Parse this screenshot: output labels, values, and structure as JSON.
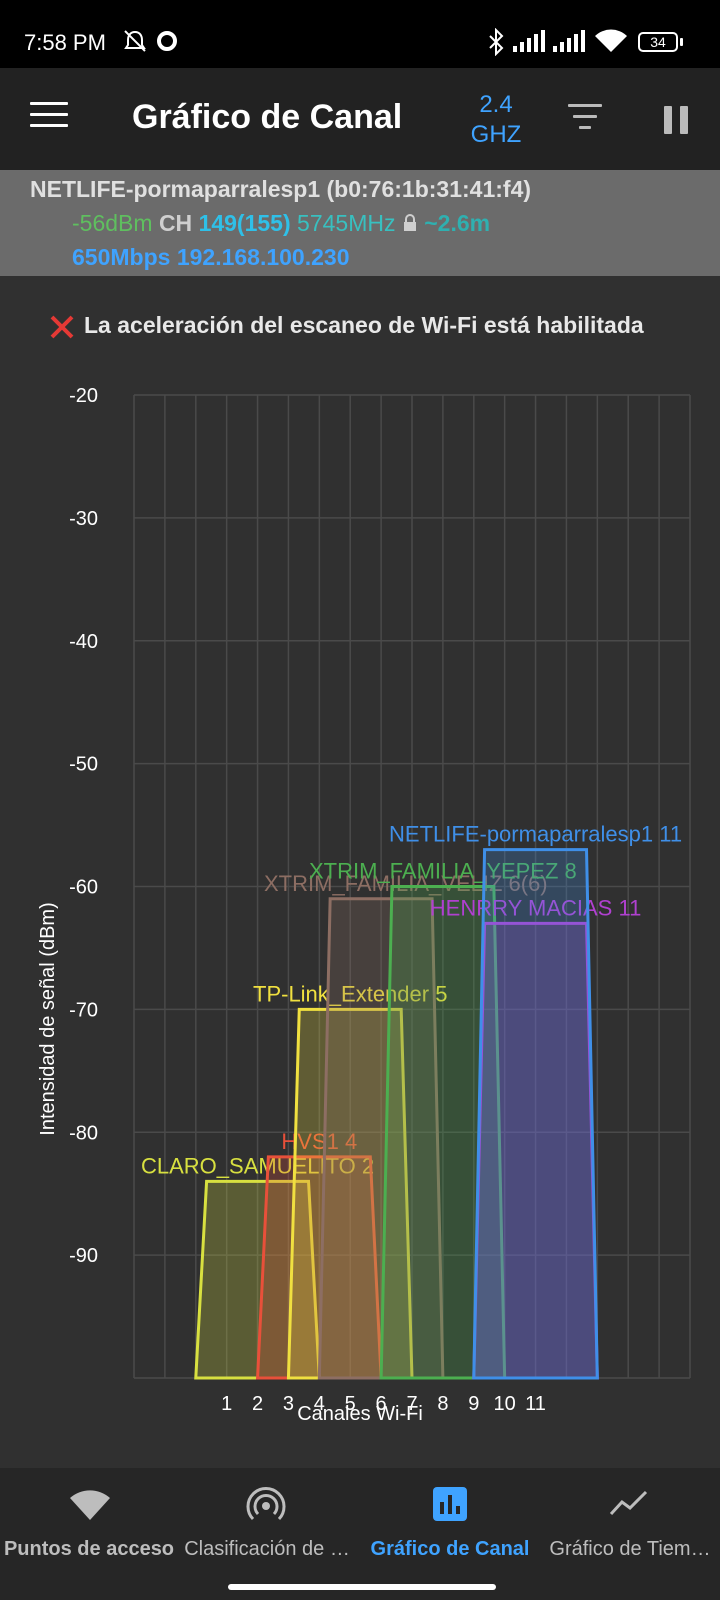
{
  "status_bar": {
    "time": "7:58 PM",
    "battery": "34"
  },
  "app_bar": {
    "title": "Gráfico de Canal",
    "band_line1": "2.4",
    "band_line2": "GHZ"
  },
  "connection": {
    "ssid_line": "NETLIFE-pormaparralesp1 (b0:76:1b:31:41:f4)",
    "signal": "-56dBm",
    "ch_label": "CH",
    "channel": "149(155)",
    "frequency": "5745MHz",
    "distance": "~2.6m",
    "speed_ip": "650Mbps 192.168.100.230"
  },
  "warning": {
    "text": "La aceleración del escaneo de Wi-Fi está habilitada",
    "color": "#e53935"
  },
  "chart_data": {
    "type": "area",
    "ylabel": "Intensidad de señal (dBm)",
    "xlabel": "Canales Wi-Fi",
    "ylim": [
      -100,
      -20
    ],
    "xlim": [
      -2,
      16
    ],
    "y_ticks": [
      -20,
      -30,
      -40,
      -50,
      -60,
      -70,
      -80,
      -90
    ],
    "x_ticks": [
      1,
      2,
      3,
      4,
      5,
      6,
      7,
      8,
      9,
      10,
      11
    ],
    "grid": true,
    "series": [
      {
        "name": "CLARO_SAMUELITO 2",
        "channel": 2,
        "signal": -84,
        "color": "#d8e040"
      },
      {
        "name": "HVS1 4",
        "channel": 4,
        "signal": -82,
        "color": "#e8503a"
      },
      {
        "name": "TP-Link_Extender 5",
        "channel": 5,
        "signal": -70,
        "color": "#f0e040"
      },
      {
        "name": "XTRIM_FAMILIA_VELIZ 6(6)",
        "channel": 6,
        "signal": -61,
        "color": "#8d6e63"
      },
      {
        "name": "XTRIM_FAMILIA_YEPEZ 8",
        "channel": 8,
        "signal": -60,
        "color": "#4caf50"
      },
      {
        "name": "HENRRY MACIAS 11",
        "channel": 11,
        "signal": -63,
        "color": "#b040d0"
      },
      {
        "name": "NETLIFE-pormaparralesp1 11",
        "channel": 11,
        "signal": -57,
        "color": "#3f8fe8"
      }
    ]
  },
  "bottom_nav": [
    {
      "label": "Puntos de acceso",
      "icon": "wifi-icon",
      "active": false
    },
    {
      "label": "Clasificación de …",
      "icon": "radar-icon",
      "active": false
    },
    {
      "label": "Gráfico de Canal",
      "icon": "bar-chart-icon",
      "active": true
    },
    {
      "label": "Gráfico de Tiem…",
      "icon": "line-chart-icon",
      "active": false
    }
  ]
}
